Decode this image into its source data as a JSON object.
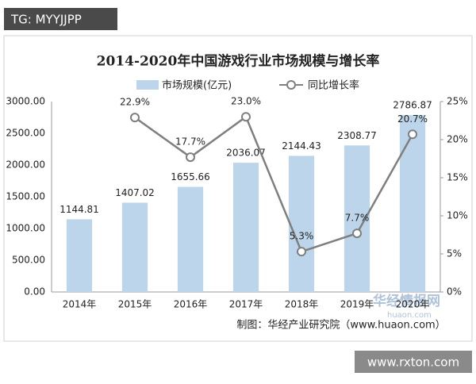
{
  "chart_data": {
    "type": "bar",
    "title": "2014-2020年中国游戏行业市场规模与增长率",
    "categories": [
      "2014年",
      "2015年",
      "2016年",
      "2017年",
      "2018年",
      "2019年",
      "2020年"
    ],
    "series": [
      {
        "name": "市场规模(亿元)",
        "type": "bar",
        "color": "#bcd5ea",
        "values": [
          1144.81,
          1407.02,
          1655.66,
          2036.07,
          2144.43,
          2308.77,
          2786.87
        ]
      },
      {
        "name": "同比增长率",
        "type": "line",
        "axis": "y2",
        "color": "#7f7f7f",
        "values": [
          null,
          22.9,
          17.7,
          23.0,
          5.3,
          7.7,
          20.7
        ],
        "value_labels": [
          null,
          "22.9%",
          "17.7%",
          "23.0%",
          "5.3%",
          "7.7%",
          "20.7%"
        ]
      }
    ],
    "ylim": [
      0,
      3000
    ],
    "yticks": [
      {
        "value": 0,
        "label": "0.00"
      },
      {
        "value": 500,
        "label": "500.00"
      },
      {
        "value": 1000,
        "label": "1000.00"
      },
      {
        "value": 1500,
        "label": "1500.00"
      },
      {
        "value": 2000,
        "label": "2000.00"
      },
      {
        "value": 2500,
        "label": "2500.00"
      },
      {
        "value": 3000,
        "label": "3000.00"
      }
    ],
    "y2lim": [
      0,
      25
    ],
    "y2ticks": [
      {
        "value": 0,
        "label": "0%"
      },
      {
        "value": 5,
        "label": "5%"
      },
      {
        "value": 10,
        "label": "10%"
      },
      {
        "value": 15,
        "label": "15%"
      },
      {
        "value": 20,
        "label": "20%"
      },
      {
        "value": 25,
        "label": "25%"
      }
    ],
    "source": "制图：华经产业研究院（www.huaon.com）"
  },
  "watermarks": {
    "tag": "TG: MYYJJPP",
    "site": "www.rxton.com",
    "logo": "华经情报网",
    "logo_url": "huaon.com"
  }
}
